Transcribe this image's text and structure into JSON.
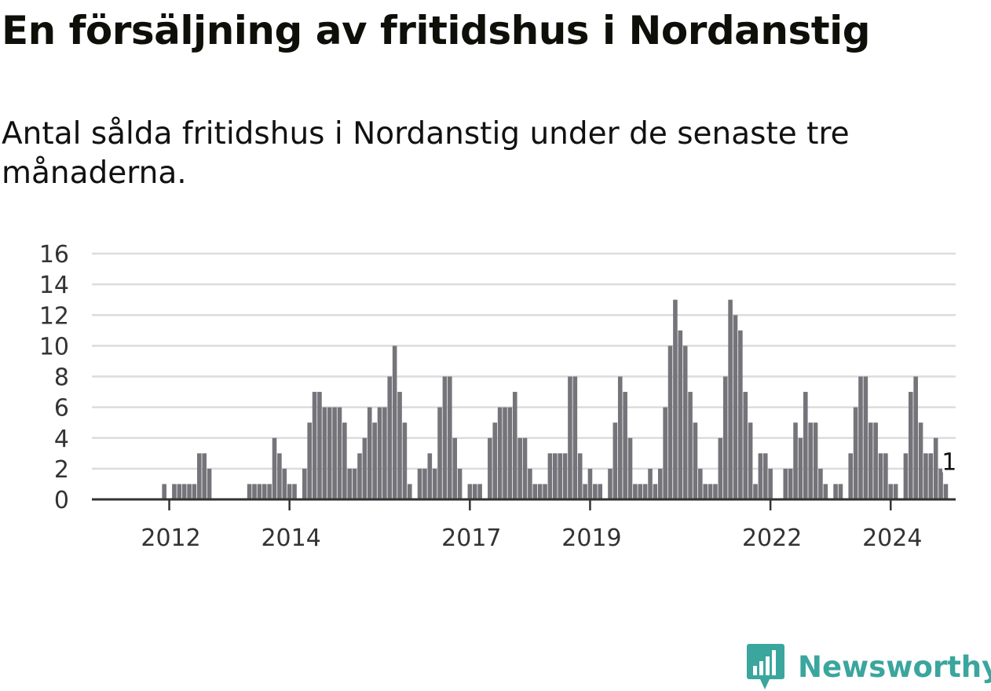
{
  "title": "En försäljning av fritidshus i Nordanstig",
  "subtitle": "Antal sålda fritidshus i Nordanstig under de senaste tre månaderna.",
  "brand": {
    "name": "Newsworthy",
    "color": "#3aa69e",
    "icon": "newsworthy-bar-chart-logo-icon"
  },
  "colors": {
    "bar": "#75747a",
    "highlight": "#2aa198",
    "grid": "#dcdcdc",
    "axis": "#333333"
  },
  "chart_data": {
    "type": "bar",
    "title": "",
    "xlabel": "",
    "ylabel": "",
    "ylim": [
      0,
      16
    ],
    "yticks": [
      0,
      2,
      4,
      6,
      8,
      10,
      12,
      14,
      16
    ],
    "xticks": [
      "2012",
      "2014",
      "2017",
      "2019",
      "2022",
      "2024"
    ],
    "grid": true,
    "start": "2011-05",
    "frequency": "monthly",
    "values": [
      0,
      0,
      0,
      0,
      0,
      0,
      0,
      1,
      0,
      1,
      1,
      1,
      1,
      1,
      3,
      3,
      2,
      0,
      0,
      0,
      0,
      0,
      0,
      0,
      1,
      1,
      1,
      1,
      1,
      4,
      3,
      2,
      1,
      1,
      0,
      2,
      5,
      7,
      7,
      6,
      6,
      6,
      6,
      5,
      2,
      2,
      3,
      4,
      6,
      5,
      6,
      6,
      8,
      10,
      7,
      5,
      1,
      0,
      2,
      2,
      3,
      2,
      6,
      8,
      8,
      4,
      2,
      0,
      1,
      1,
      1,
      0,
      4,
      5,
      6,
      6,
      6,
      7,
      4,
      4,
      2,
      1,
      1,
      1,
      3,
      3,
      3,
      3,
      8,
      8,
      3,
      1,
      2,
      1,
      1,
      0,
      2,
      5,
      8,
      7,
      4,
      1,
      1,
      1,
      2,
      1,
      2,
      6,
      10,
      13,
      11,
      10,
      7,
      5,
      2,
      1,
      1,
      1,
      4,
      8,
      13,
      12,
      11,
      7,
      5,
      1,
      3,
      3,
      2,
      0,
      0,
      2,
      2,
      5,
      4,
      7,
      5,
      5,
      2,
      1,
      0,
      1,
      1,
      0,
      3,
      6,
      8,
      8,
      5,
      5,
      3,
      3,
      1,
      1,
      0,
      3,
      7,
      8,
      5,
      3,
      3,
      4,
      2,
      1
    ],
    "highlight": {
      "index": 164,
      "value": 1,
      "label": "1"
    }
  }
}
